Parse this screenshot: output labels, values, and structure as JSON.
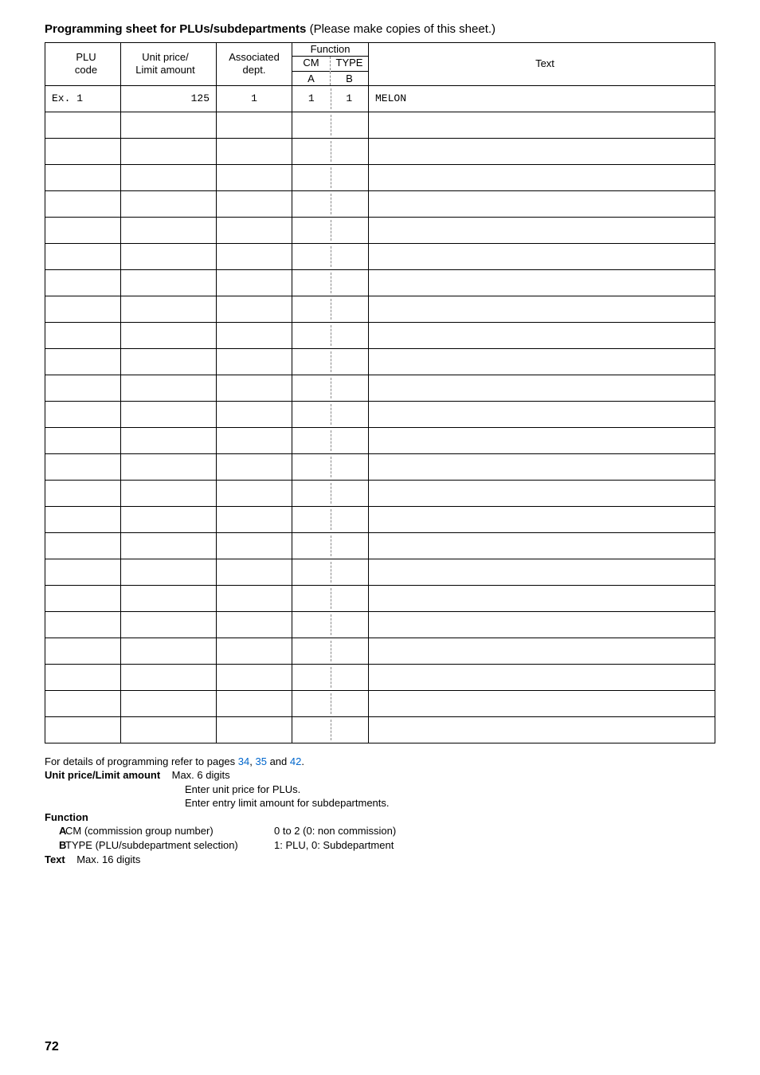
{
  "title_bold": "Programming sheet for PLUs/subdepartments",
  "title_rest": " (Please make copies of this sheet.)",
  "headers": {
    "plu": "PLU\ncode",
    "unit": "Unit price/\nLimit amount",
    "assoc": "Associated\ndept.",
    "function": "Function",
    "cm": "CM",
    "type": "TYPE",
    "a": "A",
    "b": "B",
    "text": "Text"
  },
  "example": {
    "plu": "Ex. 1",
    "unit": "125",
    "assoc": "1",
    "cm": "1",
    "type": "1",
    "text": "MELON"
  },
  "blank_rows": 24,
  "notes": {
    "refer_pre": "For details of programming refer to pages ",
    "p1": "34",
    "comma1": ", ",
    "p2": "35",
    "and": " and ",
    "p3": "42",
    "period": ".",
    "unit_label": "Unit price/Limit amount",
    "unit_max": "Max. 6 digits",
    "unit_l1": "Enter unit price for PLUs.",
    "unit_l2": "Enter entry limit amount for subdepartments.",
    "function_label": "Function",
    "a_lab": "A",
    "a_desc": "CM (commission group number)",
    "a_val": "0 to 2 (0: non commission)",
    "b_lab": "B",
    "b_desc": "TYPE (PLU/subdepartment selection)",
    "b_val": "1: PLU, 0: Subdepartment",
    "text_label": "Text",
    "text_val": "Max. 16 digits"
  },
  "page_number": "72",
  "colors": {
    "text": "#000000",
    "link": "#0066cc",
    "bg": "#ffffff",
    "dash": "#888888"
  }
}
